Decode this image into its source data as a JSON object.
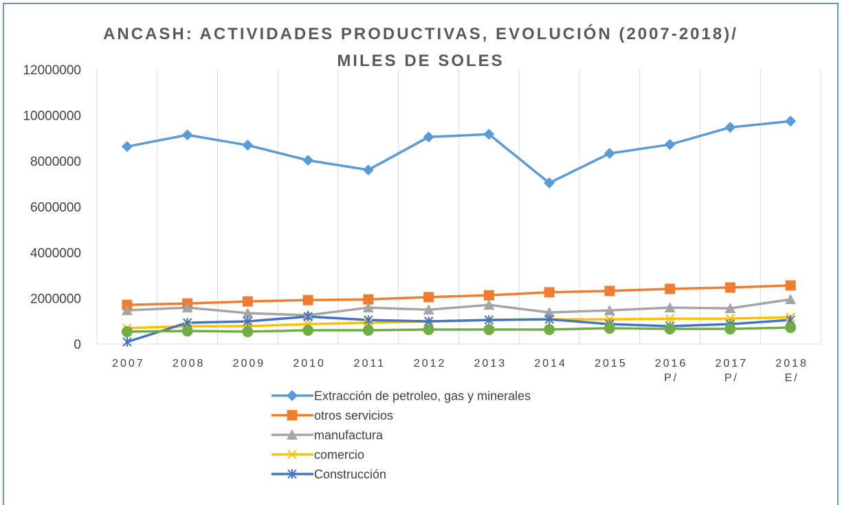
{
  "chart_data": {
    "type": "line",
    "title": "ANCASH: ACTIVIDADES PRODUCTIVAS, EVOLUCIÓN (2007-2018)/ MILES DE SOLES",
    "categories": [
      "2007",
      "2008",
      "2009",
      "2010",
      "2011",
      "2012",
      "2013",
      "2014",
      "2015",
      "2016 P/",
      "2017 P/",
      "2018 E/"
    ],
    "series": [
      {
        "name": "Extracción de petroleo, gas y minerales",
        "color": "#5b9bd5",
        "marker": "diamond",
        "values": [
          8630000,
          9140000,
          8690000,
          8030000,
          7610000,
          9050000,
          9170000,
          7040000,
          8330000,
          8720000,
          9470000,
          9740000
        ]
      },
      {
        "name": "otros servicios",
        "color": "#ed7d31",
        "marker": "square",
        "values": [
          1710000,
          1770000,
          1860000,
          1920000,
          1950000,
          2050000,
          2130000,
          2260000,
          2320000,
          2410000,
          2470000,
          2560000
        ]
      },
      {
        "name": "manufactura",
        "color": "#a5a5a5",
        "marker": "triangle",
        "values": [
          1470000,
          1590000,
          1350000,
          1260000,
          1590000,
          1500000,
          1710000,
          1380000,
          1470000,
          1590000,
          1560000,
          1950000
        ]
      },
      {
        "name": "comercio",
        "color": "#ffc000",
        "marker": "x",
        "values": [
          690000,
          780000,
          780000,
          870000,
          930000,
          990000,
          1050000,
          1080000,
          1080000,
          1110000,
          1110000,
          1170000
        ]
      },
      {
        "name": "Construcción",
        "color": "#4472c4",
        "marker": "star",
        "values": [
          90000,
          930000,
          990000,
          1200000,
          1050000,
          990000,
          1050000,
          1080000,
          870000,
          780000,
          870000,
          1050000
        ]
      },
      {
        "color": "#70ad47",
        "marker": "circle",
        "values": [
          540000,
          570000,
          540000,
          600000,
          600000,
          630000,
          630000,
          630000,
          690000,
          660000,
          660000,
          720000
        ]
      }
    ],
    "ylim": [
      0,
      12000000
    ],
    "yticks": [
      0,
      2000000,
      4000000,
      6000000,
      8000000,
      10000000,
      12000000
    ],
    "vertical_grid": true,
    "legend": "bottom"
  }
}
